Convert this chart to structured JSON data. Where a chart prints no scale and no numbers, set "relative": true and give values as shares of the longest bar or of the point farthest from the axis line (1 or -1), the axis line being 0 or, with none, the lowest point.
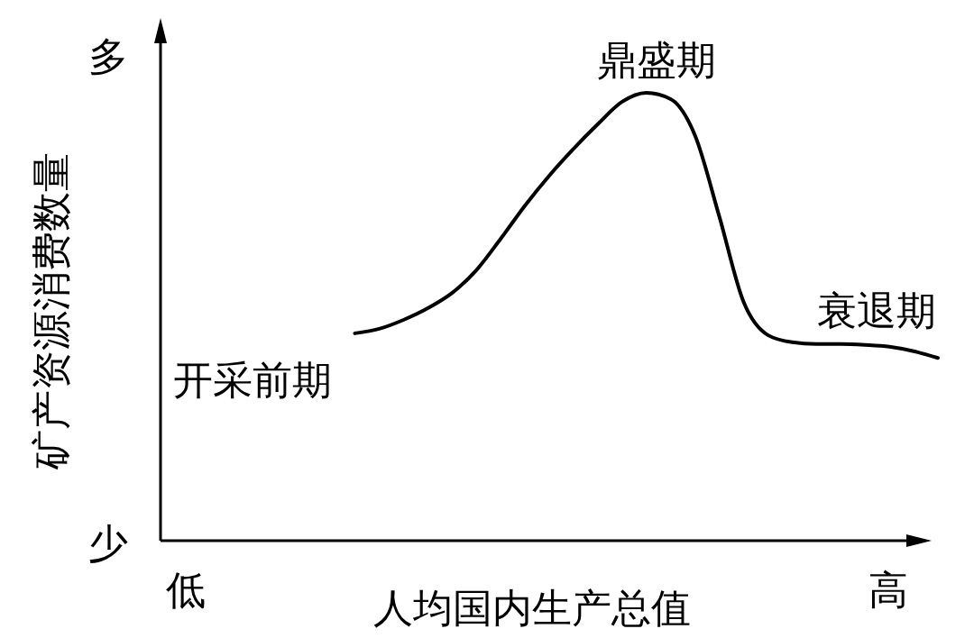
{
  "chart_data": {
    "type": "line",
    "relative": true,
    "xlabel": "人均国内生产总值",
    "ylabel": "矿产资源消费数量",
    "categories": [
      null,
      null,
      null,
      null,
      null,
      null,
      null,
      null,
      null,
      null,
      null,
      null,
      null,
      null,
      null,
      null,
      null,
      null,
      null,
      null,
      null,
      null,
      null,
      null,
      null,
      null,
      null,
      null,
      null,
      null,
      null,
      null,
      null
    ],
    "series": [
      {
        "color": "#000000",
        "values": [
          null,
          null,
          null,
          null,
          null,
          null,
          null,
          null,
          0.463,
          0.473,
          0.493,
          0.519,
          0.553,
          0.604,
          0.674,
          0.748,
          0.815,
          0.875,
          0.93,
          0.98,
          1,
          0.986,
          0.905,
          0.724,
          0.533,
          0.459,
          0.443,
          0.439,
          0.439,
          0.437,
          0.433,
          0.423,
          0.408
        ]
      }
    ],
    "annotations": [
      "开采前期",
      "鼎盛期",
      "衰退期",
      "多",
      "少",
      "低",
      "高"
    ]
  }
}
